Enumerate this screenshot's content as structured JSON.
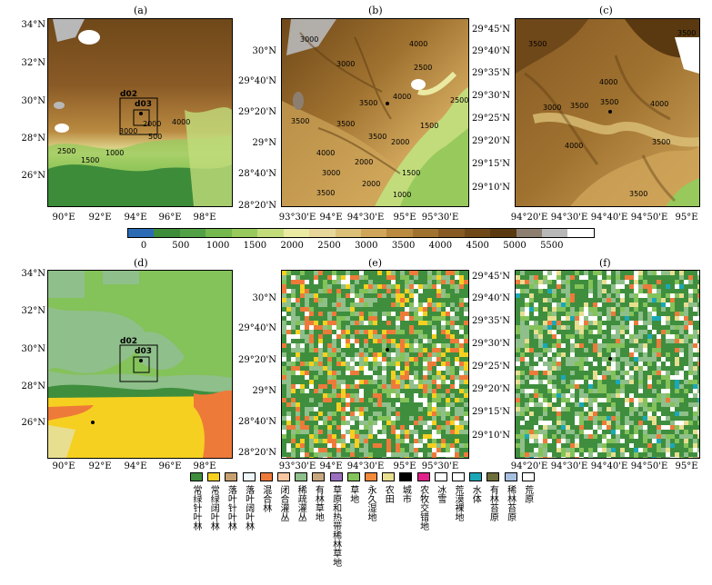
{
  "panels": {
    "a": {
      "label": "(a)",
      "lat_ticks": [
        "34°N",
        "32°N",
        "30°N",
        "28°N",
        "26°N"
      ],
      "lon_ticks": [
        "90°E",
        "92°E",
        "94°E",
        "96°E",
        "98°E"
      ],
      "boxes": [
        "d02",
        "d03"
      ],
      "contours": [
        "2500",
        "1500",
        "1000",
        "3000",
        "2000",
        "500",
        "4000"
      ]
    },
    "b": {
      "label": "(b)",
      "lat_ticks": [
        "30°N",
        "29°40'N",
        "29°20'N",
        "29°N",
        "28°40'N",
        "28°20'N"
      ],
      "lon_ticks": [
        "93°30'E",
        "94°E",
        "94°30'E",
        "95°E",
        "95°30'E"
      ],
      "contours": [
        "3000",
        "4000",
        "3000",
        "2500",
        "3500",
        "4000",
        "2500",
        "3500",
        "3500",
        "2000",
        "1500",
        "4000",
        "3500",
        "1000",
        "2000",
        "1500",
        "3000",
        "3500",
        "2000"
      ]
    },
    "c": {
      "label": "(c)",
      "lat_ticks": [
        "29°45'N",
        "29°40'N",
        "29°35'N",
        "29°30'N",
        "29°25'N",
        "29°20'N",
        "29°15'N",
        "29°10'N"
      ],
      "lon_ticks": [
        "94°20'E",
        "94°30'E",
        "94°40'E",
        "94°50'E",
        "95°E"
      ],
      "contours": [
        "3500",
        "3500",
        "3000",
        "3500",
        "4000",
        "3500",
        "4000",
        "4000",
        "3500",
        "3500"
      ]
    },
    "d": {
      "label": "(d)",
      "lat_ticks": [
        "34°N",
        "32°N",
        "30°N",
        "28°N",
        "26°N"
      ],
      "lon_ticks": [
        "90°E",
        "92°E",
        "94°E",
        "96°E",
        "98°E"
      ],
      "boxes": [
        "d02",
        "d03"
      ]
    },
    "e": {
      "label": "(e)",
      "lat_ticks": [
        "30°N",
        "29°40'N",
        "29°20'N",
        "29°N",
        "28°40'N",
        "28°20'N"
      ],
      "lon_ticks": [
        "93°30'E",
        "94°E",
        "94°30'E",
        "95°E",
        "95°30'E"
      ]
    },
    "f": {
      "label": "(f)",
      "lat_ticks": [
        "29°45'N",
        "29°40'N",
        "29°35'N",
        "29°30'N",
        "29°25'N",
        "29°20'N",
        "29°15'N",
        "29°10'N"
      ],
      "lon_ticks": [
        "94°20'E",
        "94°30'E",
        "94°40'E",
        "94°50'E",
        "95°E"
      ]
    }
  },
  "colorbar": {
    "ticks": [
      "0",
      "500",
      "1000",
      "1500",
      "2000",
      "2500",
      "3000",
      "3500",
      "4000",
      "4500",
      "5000",
      "5500"
    ],
    "colors": [
      "#2b6bb5",
      "#3d8c3a",
      "#52a046",
      "#74b84e",
      "#98c95c",
      "#c2dc7c",
      "#eaeaa2",
      "#e8d79a",
      "#dcc078",
      "#cfa55a",
      "#b98a40",
      "#a07230",
      "#875a24",
      "#6f4819",
      "#5a3910",
      "#8c7f70",
      "#b8b8b8",
      "#ffffff"
    ]
  },
  "landcover": {
    "classes": [
      {
        "name": "常绿针叶林",
        "color": "#3e8e3e"
      },
      {
        "name": "常绿阔叶林",
        "color": "#f5d020"
      },
      {
        "name": "落叶针叶林",
        "color": "#c8a070"
      },
      {
        "name": "落叶阔叶林",
        "color": "#eef6f8"
      },
      {
        "name": "混合林",
        "color": "#ee7a3a"
      },
      {
        "name": "闭合灌丛",
        "color": "#f7c6a0"
      },
      {
        "name": "稀疏灌丛",
        "color": "#8fbf8a"
      },
      {
        "name": "有林草地",
        "color": "#c8a87e"
      },
      {
        "name": "草原和热带稀林草地",
        "color": "#9a6fc0"
      },
      {
        "name": "草地",
        "color": "#84c25a"
      },
      {
        "name": "永久湿地",
        "color": "#f28a3a"
      },
      {
        "name": "农田",
        "color": "#e8de90"
      },
      {
        "name": "城市",
        "color": "#000000"
      },
      {
        "name": "农牧交错地",
        "color": "#e0228a"
      },
      {
        "name": "冰雪",
        "color": "#ffffff"
      },
      {
        "name": "荒漠裸地",
        "color": "#ffffff"
      },
      {
        "name": "水体",
        "color": "#1aa8b8"
      },
      {
        "name": "有林苔原",
        "color": "#6e6e3a"
      },
      {
        "name": "稀林苔原",
        "color": "#a8c0e0"
      },
      {
        "name": "荒原",
        "color": "#ffffff"
      }
    ]
  }
}
